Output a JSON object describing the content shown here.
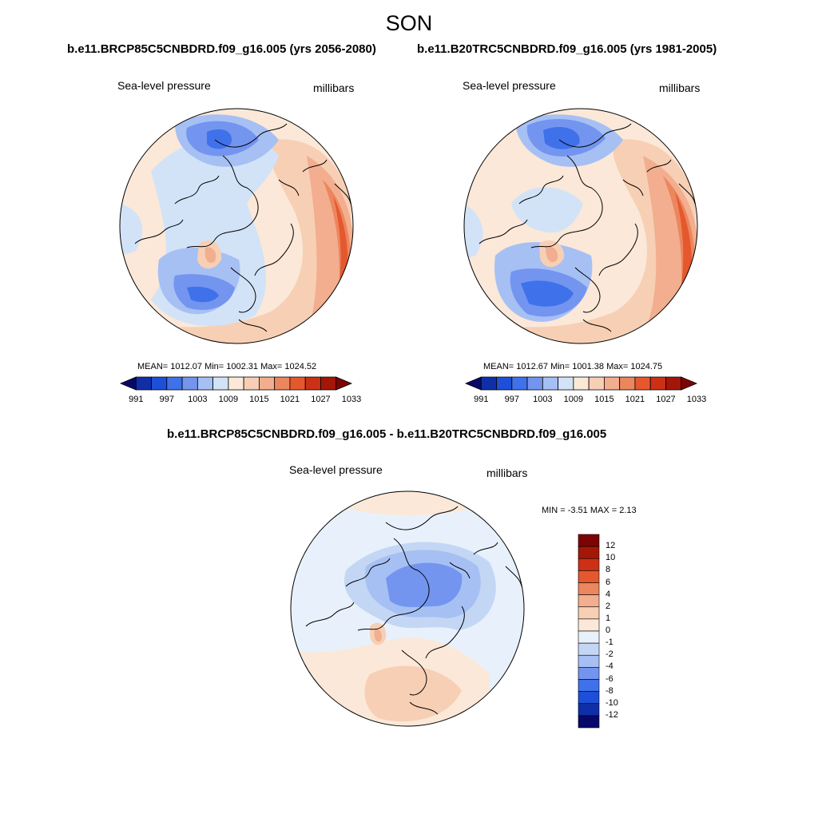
{
  "figure": {
    "title": "SON"
  },
  "panels": [
    {
      "id": "future",
      "header": "b.e11.BRCP85C5CNBDRD.f09_g16.005 (yrs 2056-2080)",
      "variable_label": "Sea-level pressure",
      "units_label": "millibars",
      "stats": "MEAN= 1012.07  Min= 1002.31  Max= 1024.52"
    },
    {
      "id": "historical",
      "header": "b.e11.B20TRC5CNBDRD.f09_g16.005 (yrs 1981-2005)",
      "variable_label": "Sea-level pressure",
      "units_label": "millibars",
      "stats": "MEAN= 1012.67  Min= 1001.38  Max= 1024.75"
    },
    {
      "id": "difference",
      "header": "b.e11.BRCP85C5CNBDRD.f09_g16.005 - b.e11.B20TRC5CNBDRD.f09_g16.005",
      "variable_label": "Sea-level pressure",
      "units_label": "millibars",
      "stats": "MIN =  -3.51 MAX =   2.13"
    }
  ],
  "colorbar_horizontal": {
    "colors": [
      "#08086b",
      "#0f2fa8",
      "#1d4fd8",
      "#3f71ea",
      "#7395ef",
      "#a6c0f4",
      "#d2e3f8",
      "#fbe8d8",
      "#f7cfb4",
      "#f2ae8e",
      "#ec865f",
      "#e5582e",
      "#cc3015",
      "#a41708",
      "#7d0404"
    ],
    "tick_labels": [
      "991",
      "997",
      "1003",
      "1009",
      "1015",
      "1021",
      "1027",
      "1033"
    ]
  },
  "colorbar_vertical": {
    "colors_top_to_bottom": [
      "#7d0404",
      "#a41708",
      "#cc3015",
      "#e5582e",
      "#ec865f",
      "#f2ae8e",
      "#f7cfb4",
      "#fbe8d8",
      "#e8f1fb",
      "#c3d7f5",
      "#a6c0f4",
      "#7395ef",
      "#3f71ea",
      "#1d4fd8",
      "#0f2fa8",
      "#08086b"
    ],
    "tick_labels_top_to_bottom": [
      "12",
      "10",
      "8",
      "6",
      "4",
      "2",
      "1",
      "0",
      "-1",
      "-2",
      "-4",
      "-6",
      "-8",
      "-10",
      "-12"
    ]
  }
}
